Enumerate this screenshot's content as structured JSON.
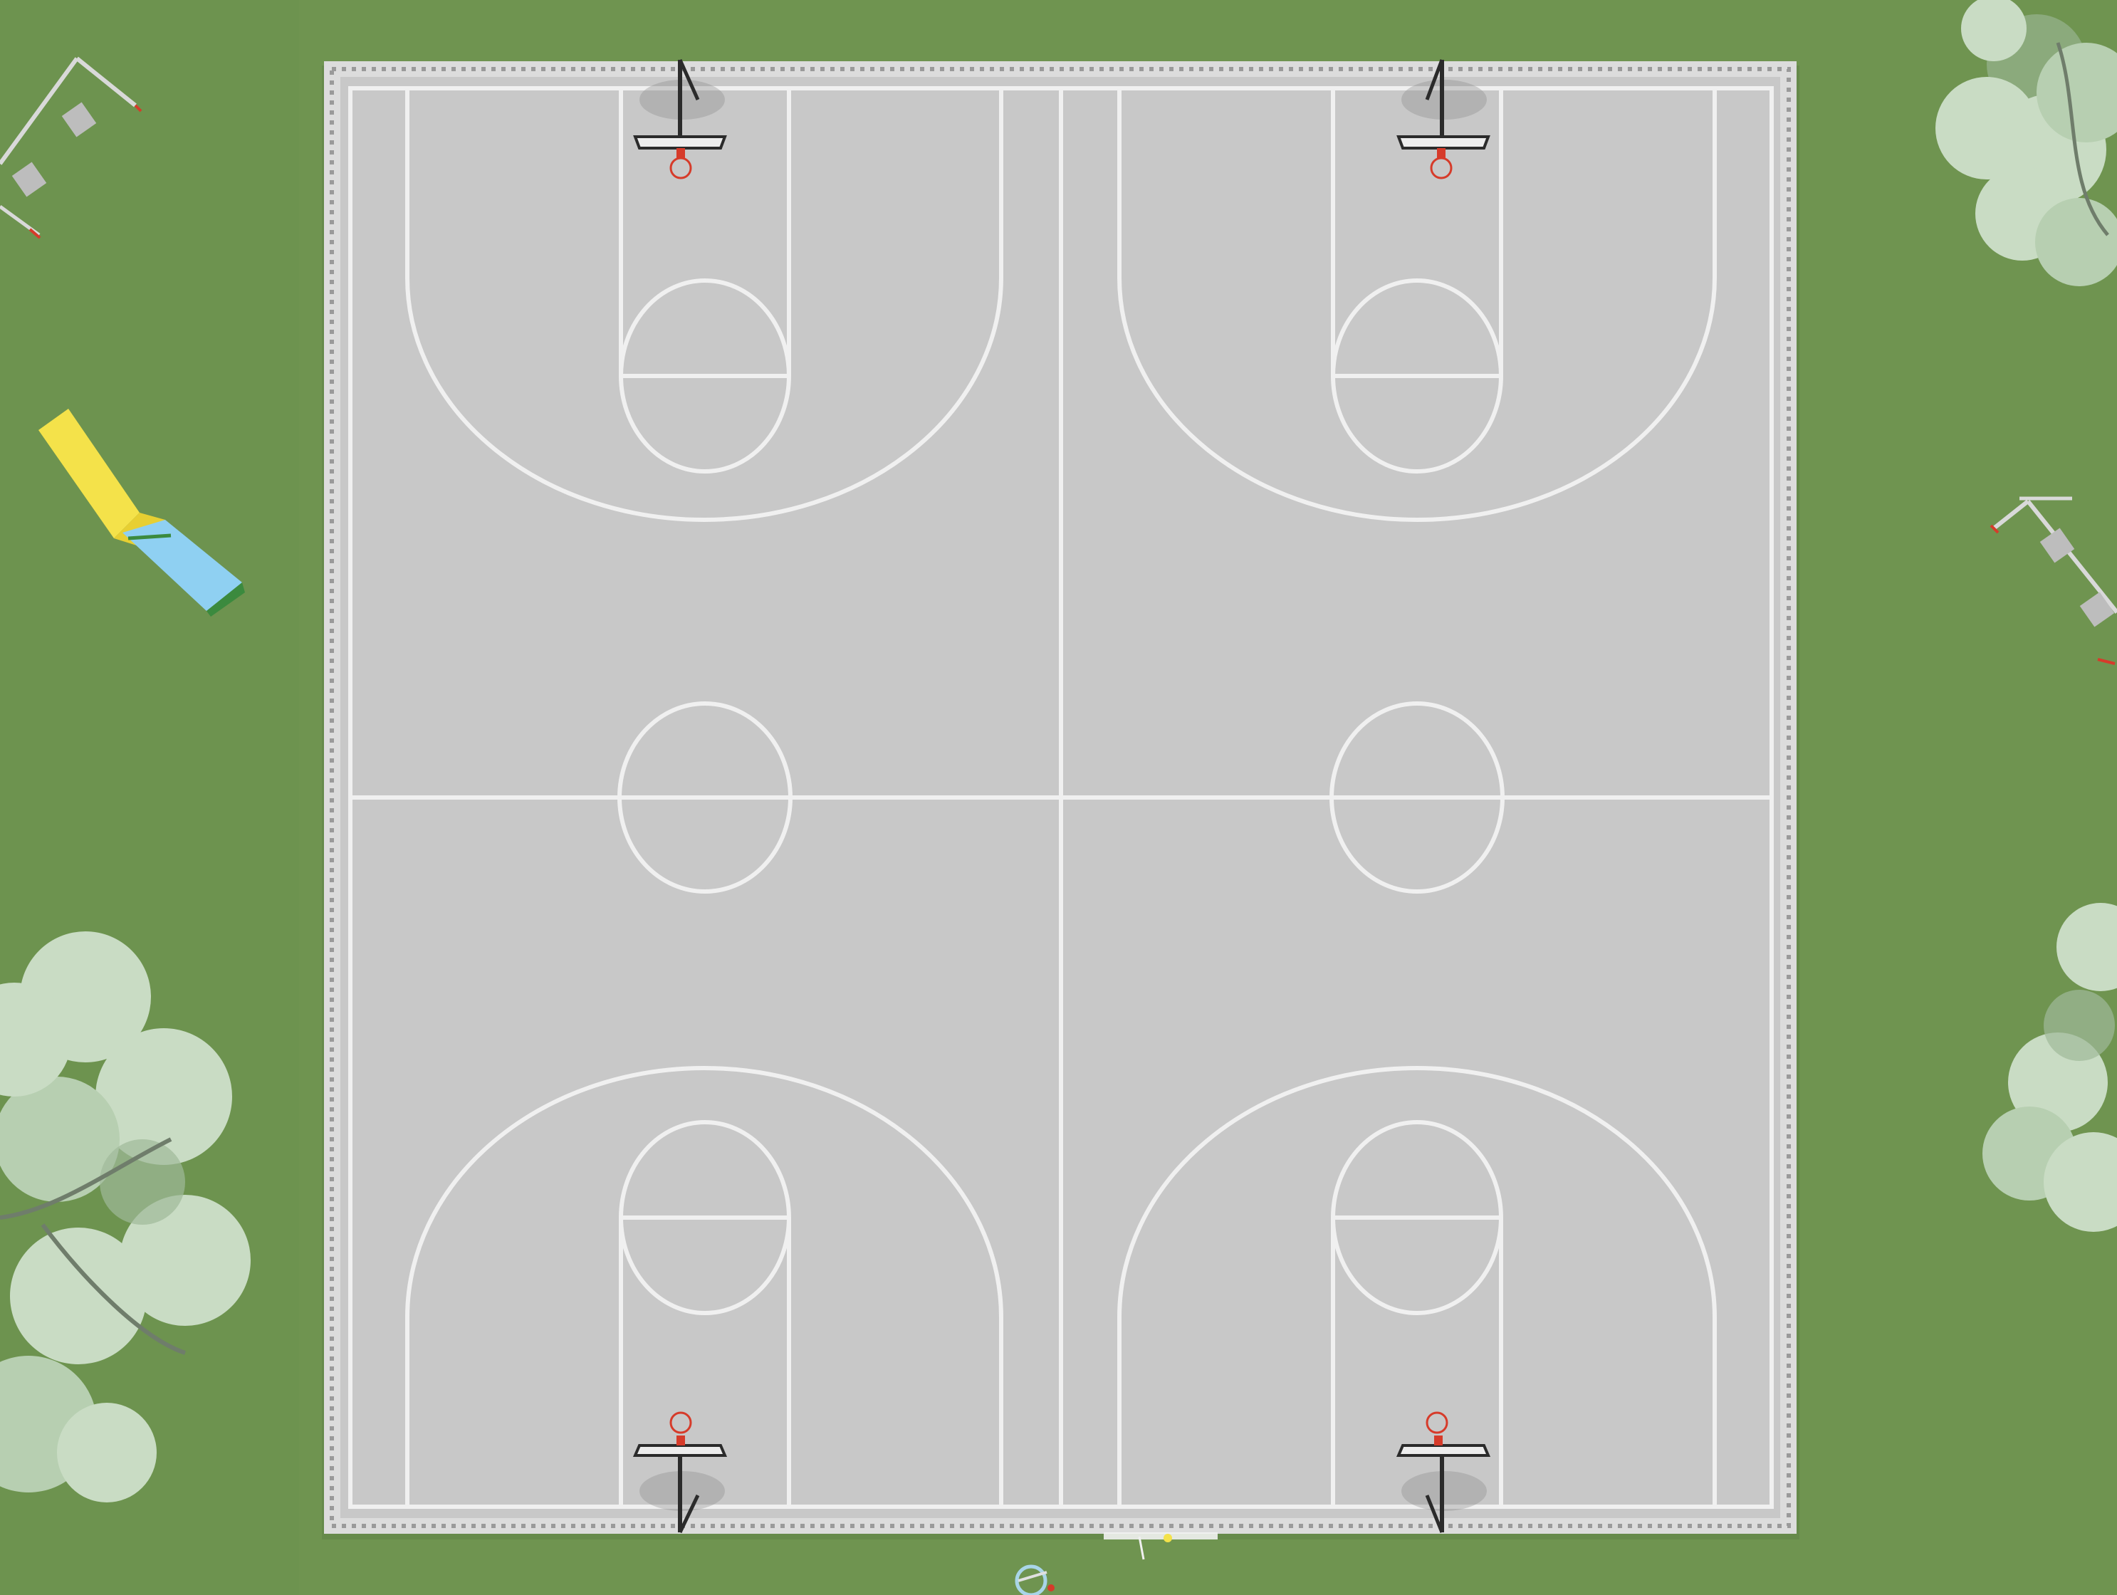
{
  "scene": {
    "description_type": "aerial-rendering",
    "colors": {
      "grass": "#6f9450",
      "grass_dark": "#62864a",
      "court_surface": "#c9c9c9",
      "court_edge": "#bdbdbd",
      "court_lines": "#f2f2f2",
      "fence": "#e6e6e6",
      "hoop_rim": "#d63b2a",
      "backboard": "#ededed",
      "pole": "#2b2b2b",
      "slide_yellow": "#f4e24a",
      "slide_blue": "#8fd0f2",
      "slide_green": "#3b8a3e",
      "tree_leaf": "#c9dcc4",
      "tree_leaf_dark": "#9fb99a",
      "swing_frame": "#d9d9d9",
      "swing_seat": "#b8b8b8"
    },
    "objects": {
      "court_count": 2,
      "basket_count": 4,
      "trees_count": 4,
      "swing_sets_count": 2,
      "slides_count": 1,
      "bicycles_count": 1
    }
  }
}
